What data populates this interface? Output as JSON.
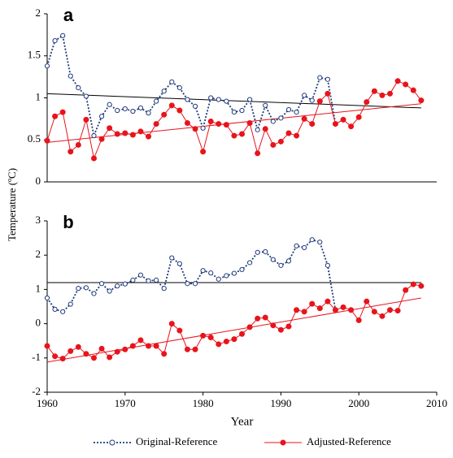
{
  "y_axis_label": "Temperature (ºC)",
  "chart_data": [
    {
      "type": "line",
      "title": "a",
      "x": [
        1960,
        1961,
        1962,
        1963,
        1964,
        1965,
        1966,
        1967,
        1968,
        1969,
        1970,
        1971,
        1972,
        1973,
        1974,
        1975,
        1976,
        1977,
        1978,
        1979,
        1980,
        1981,
        1982,
        1983,
        1984,
        1985,
        1986,
        1987,
        1988,
        1989,
        1990,
        1991,
        1992,
        1993,
        1994,
        1995,
        1996,
        1997,
        1998,
        1999,
        2000,
        2001,
        2002,
        2003,
        2004,
        2005,
        2006,
        2007,
        2008
      ],
      "xlim": [
        1960,
        2010
      ],
      "ylim": [
        0,
        2
      ],
      "yticks": [
        0,
        0.5,
        1,
        1.5,
        2
      ],
      "series": [
        {
          "color": "#1f3a7a",
          "style": "dotted",
          "values": [
            1.38,
            1.68,
            1.74,
            1.26,
            1.12,
            1.02,
            0.55,
            0.78,
            0.92,
            0.85,
            0.87,
            0.84,
            0.88,
            0.82,
            0.96,
            1.08,
            1.19,
            1.12,
            0.98,
            0.9,
            0.64,
            1.0,
            0.98,
            0.96,
            0.83,
            0.85,
            0.98,
            0.62,
            0.91,
            0.72,
            0.76,
            0.86,
            0.83,
            1.03,
            0.97,
            1.24,
            1.22,
            0.69,
            null,
            null,
            null,
            null,
            null,
            null,
            null,
            null,
            null,
            null,
            null
          ]
        },
        {
          "color": "#e8141c",
          "style": "solid",
          "values": [
            0.49,
            0.78,
            0.83,
            0.36,
            0.44,
            0.74,
            0.28,
            0.51,
            0.64,
            0.57,
            0.58,
            0.56,
            0.6,
            0.54,
            0.69,
            0.8,
            0.91,
            0.85,
            0.7,
            0.63,
            0.36,
            0.72,
            0.69,
            0.68,
            0.55,
            0.57,
            0.7,
            0.34,
            0.63,
            0.44,
            0.48,
            0.58,
            0.55,
            0.75,
            0.69,
            0.96,
            1.05,
            0.69,
            0.74,
            0.66,
            0.77,
            0.95,
            1.08,
            1.03,
            1.05,
            1.2,
            1.16,
            1.09,
            0.97
          ]
        }
      ],
      "trend_lines": [
        {
          "color": "#000000",
          "x": [
            1960,
            2008
          ],
          "values": [
            1.05,
            0.88
          ]
        },
        {
          "color": "#e8141c",
          "x": [
            1960,
            2008
          ],
          "values": [
            0.47,
            0.93
          ]
        }
      ]
    },
    {
      "type": "line",
      "title": "b",
      "xlabel": "Year",
      "x": [
        1960,
        1961,
        1962,
        1963,
        1964,
        1965,
        1966,
        1967,
        1968,
        1969,
        1970,
        1971,
        1972,
        1973,
        1974,
        1975,
        1976,
        1977,
        1978,
        1979,
        1980,
        1981,
        1982,
        1983,
        1984,
        1985,
        1986,
        1987,
        1988,
        1989,
        1990,
        1991,
        1992,
        1993,
        1994,
        1995,
        1996,
        1997,
        1998,
        1999,
        2000,
        2001,
        2002,
        2003,
        2004,
        2005,
        2006,
        2007,
        2008
      ],
      "xlim": [
        1960,
        2010
      ],
      "xticks": [
        1960,
        1970,
        1980,
        1990,
        2000,
        2010
      ],
      "ylim": [
        -2,
        3
      ],
      "yticks": [
        -2,
        -1,
        0,
        1,
        2,
        3
      ],
      "series": [
        {
          "name": "Original-Reference",
          "color": "#1f3a7a",
          "style": "dotted",
          "values": [
            0.75,
            0.42,
            0.35,
            0.57,
            1.03,
            1.05,
            0.88,
            1.17,
            0.95,
            1.1,
            1.16,
            1.27,
            1.42,
            1.25,
            1.27,
            1.03,
            1.92,
            1.75,
            1.17,
            1.17,
            1.55,
            1.48,
            1.3,
            1.4,
            1.47,
            1.58,
            1.78,
            2.08,
            2.1,
            1.87,
            1.7,
            1.83,
            2.27,
            2.22,
            2.45,
            2.38,
            1.7,
            0.4,
            null,
            null,
            null,
            null,
            null,
            null,
            null,
            null,
            null,
            null,
            null
          ]
        },
        {
          "name": "Adjusted-Reference",
          "color": "#e8141c",
          "style": "solid",
          "values": [
            -0.65,
            -0.95,
            -1.02,
            -0.8,
            -0.68,
            -0.88,
            -1.0,
            -0.73,
            -0.98,
            -0.82,
            -0.75,
            -0.65,
            -0.48,
            -0.65,
            -0.65,
            -0.88,
            0.0,
            -0.2,
            -0.75,
            -0.75,
            -0.35,
            -0.4,
            -0.6,
            -0.52,
            -0.45,
            -0.3,
            -0.1,
            0.15,
            0.18,
            -0.05,
            -0.18,
            -0.08,
            0.4,
            0.35,
            0.58,
            0.45,
            0.65,
            0.4,
            0.48,
            0.4,
            0.1,
            0.65,
            0.35,
            0.22,
            0.4,
            0.38,
            0.98,
            1.15,
            1.1
          ]
        }
      ],
      "trend_lines": [
        {
          "color": "#000000",
          "x": [
            1960,
            2008
          ],
          "values": [
            1.2,
            1.2
          ]
        },
        {
          "color": "#e8141c",
          "x": [
            1960,
            2008
          ],
          "values": [
            -1.12,
            0.75
          ]
        }
      ]
    }
  ]
}
